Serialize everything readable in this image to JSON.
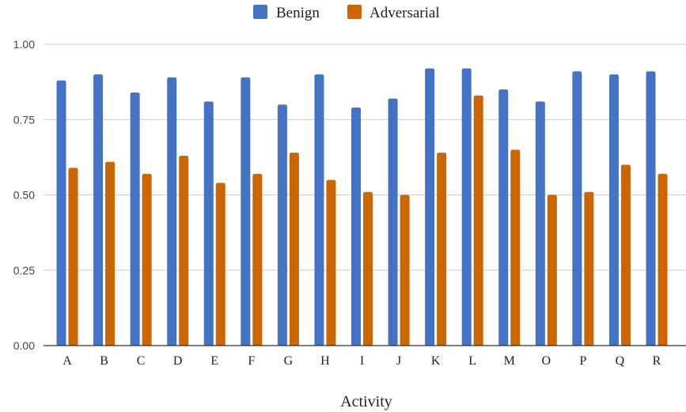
{
  "chart_data": {
    "type": "bar",
    "categories": [
      "A",
      "B",
      "C",
      "D",
      "E",
      "F",
      "G",
      "H",
      "I",
      "J",
      "K",
      "L",
      "M",
      "O",
      "P",
      "Q",
      "R"
    ],
    "series": [
      {
        "name": "Benign",
        "color": "#4472c4",
        "values": [
          0.88,
          0.9,
          0.84,
          0.89,
          0.81,
          0.89,
          0.8,
          0.9,
          0.79,
          0.82,
          0.92,
          0.92,
          0.85,
          0.81,
          0.91,
          0.9,
          0.91
        ]
      },
      {
        "name": "Adversarial",
        "color": "#cc6600",
        "values": [
          0.59,
          0.61,
          0.57,
          0.63,
          0.54,
          0.57,
          0.64,
          0.55,
          0.51,
          0.5,
          0.64,
          0.83,
          0.65,
          0.5,
          0.51,
          0.6,
          0.57
        ]
      }
    ],
    "xlabel": "Activity",
    "ylabel": "",
    "ylim": [
      0,
      1.0
    ],
    "yticks": [
      "0.00",
      "0.25",
      "0.50",
      "0.75",
      "1.00"
    ],
    "grid": true,
    "legend_position": "top-center"
  }
}
